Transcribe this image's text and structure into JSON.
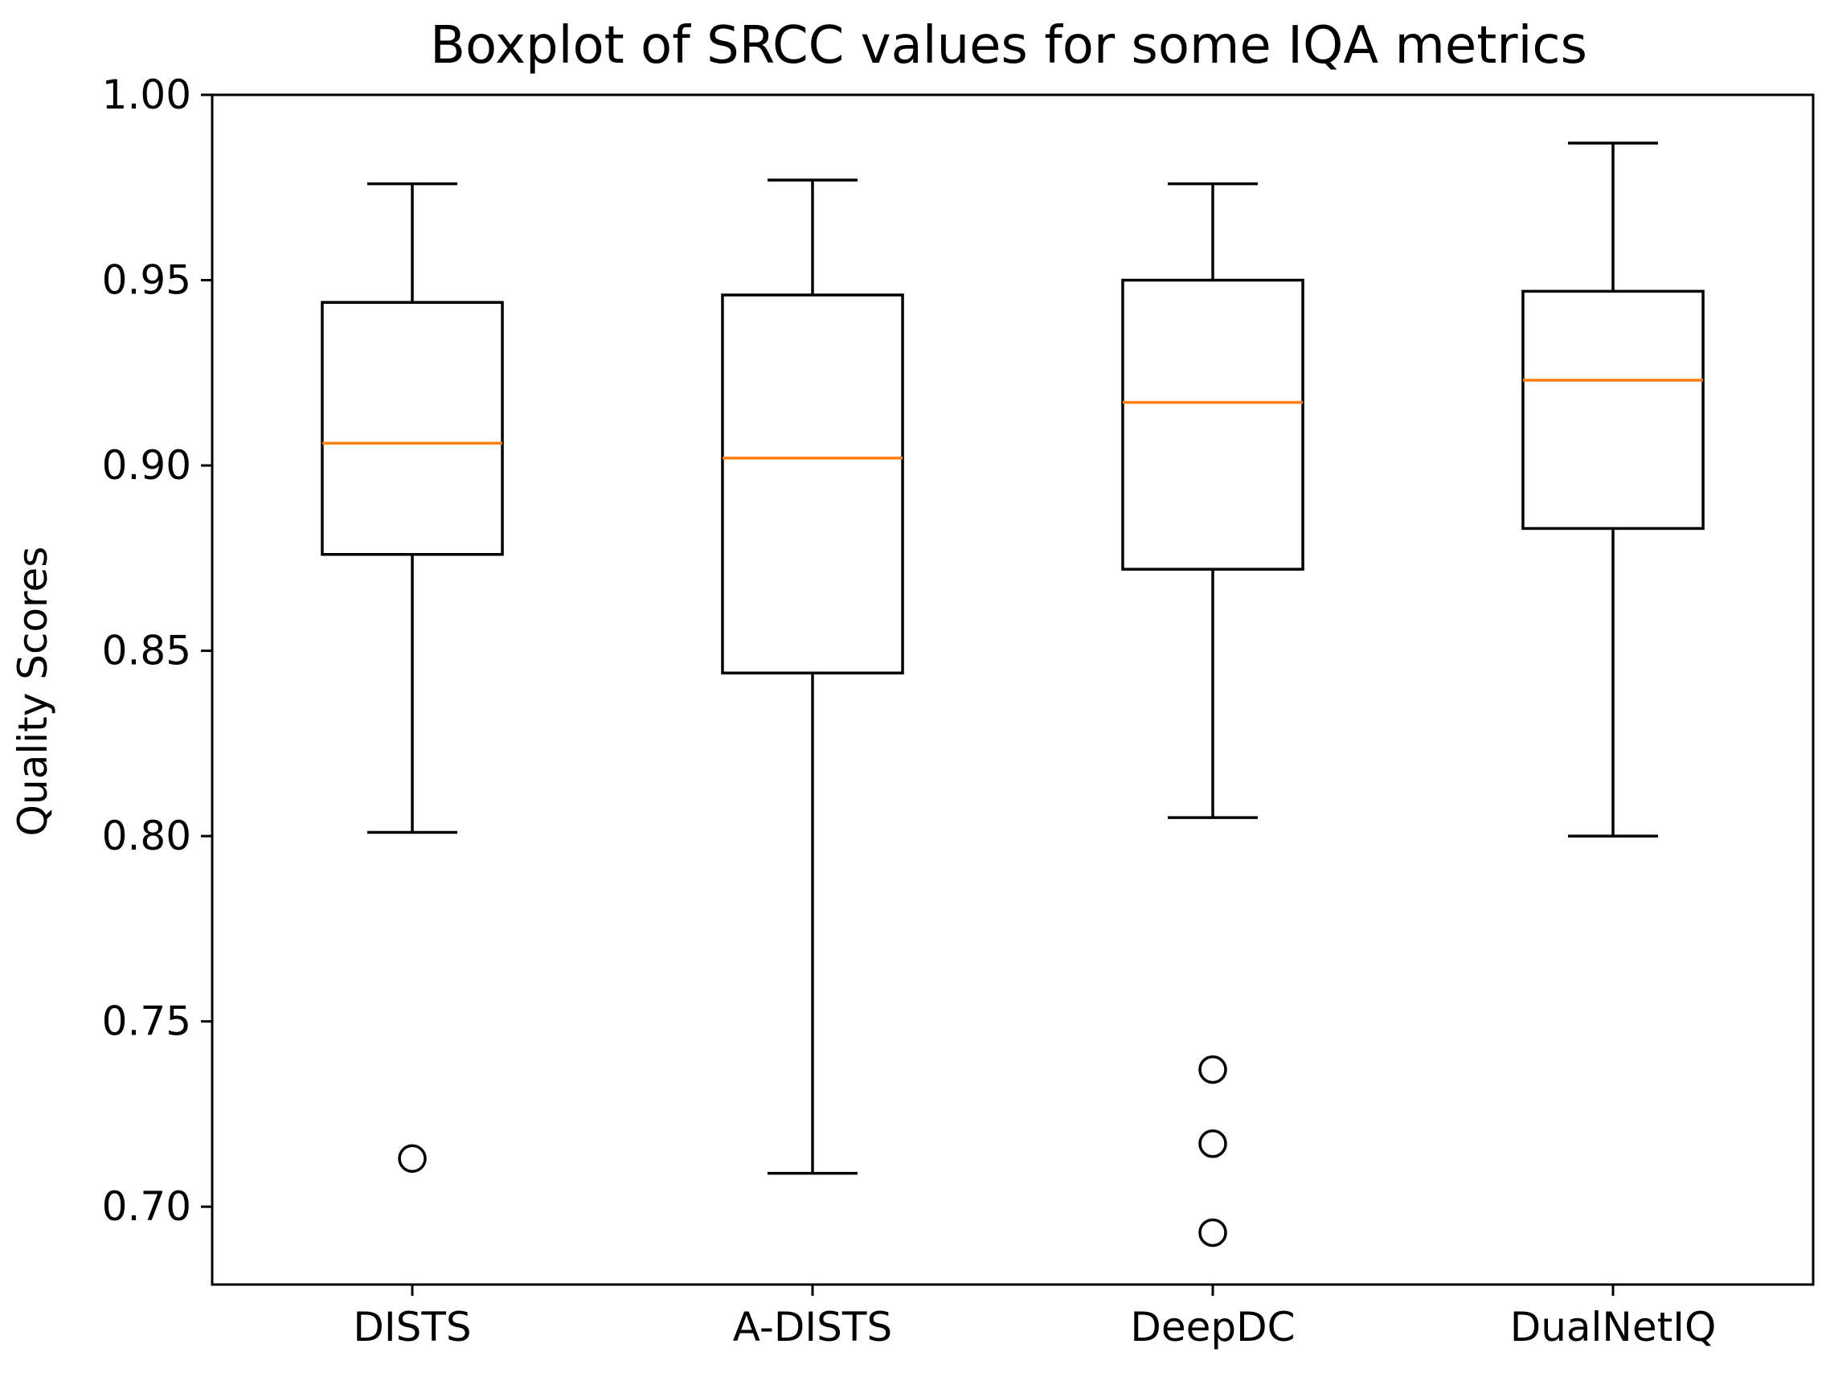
{
  "chart_data": {
    "type": "boxplot",
    "title": "Boxplot of SRCC values for some IQA metrics",
    "xlabel": "",
    "ylabel": "Quality Scores",
    "ylim": [
      0.679,
      1.0
    ],
    "yticks": [
      "0.70",
      "0.75",
      "0.80",
      "0.85",
      "0.90",
      "0.95",
      "1.00"
    ],
    "grid": false,
    "categories": [
      "DISTS",
      "A-DISTS",
      "DeepDC",
      "DualNetIQ"
    ],
    "series": [
      {
        "name": "DISTS",
        "whisker_low": 0.801,
        "q1": 0.876,
        "median": 0.906,
        "q3": 0.944,
        "whisker_high": 0.976,
        "outliers": [
          0.713
        ]
      },
      {
        "name": "A-DISTS",
        "whisker_low": 0.709,
        "q1": 0.844,
        "median": 0.902,
        "q3": 0.946,
        "whisker_high": 0.977,
        "outliers": []
      },
      {
        "name": "DeepDC",
        "whisker_low": 0.805,
        "q1": 0.872,
        "median": 0.917,
        "q3": 0.95,
        "whisker_high": 0.976,
        "outliers": [
          0.737,
          0.717,
          0.693
        ]
      },
      {
        "name": "DualNetIQ",
        "whisker_low": 0.8,
        "q1": 0.883,
        "median": 0.923,
        "q3": 0.947,
        "whisker_high": 0.987,
        "outliers": []
      }
    ],
    "colors": {
      "box": "#000000",
      "median": "#ff7f0e",
      "outlier": "#000000"
    }
  }
}
